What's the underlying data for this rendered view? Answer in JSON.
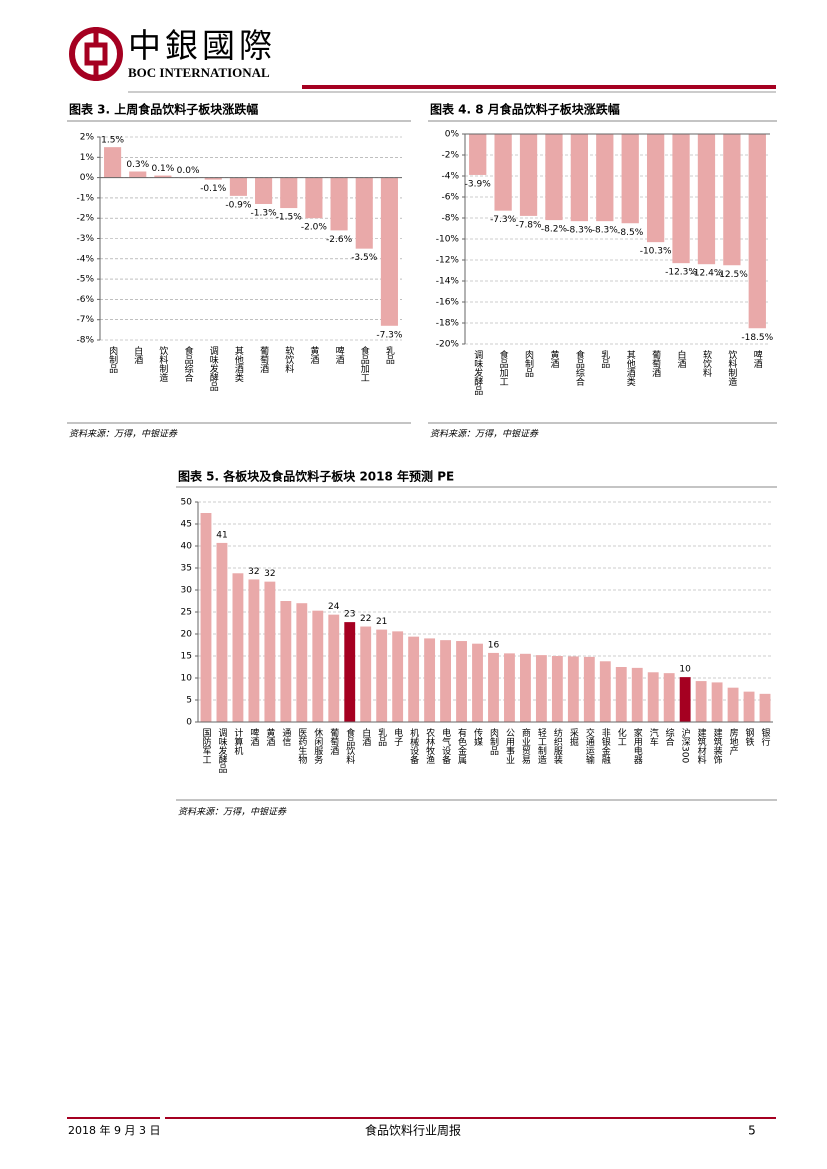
{
  "header": {
    "brand_cn": "中銀國際",
    "brand_en": "BOC INTERNATIONAL"
  },
  "chart_data": [
    {
      "type": "bar",
      "title": "图表 3. 上周食品饮料子板块涨跌幅",
      "source": "资料来源：万得，中银证券",
      "categories": [
        "肉制品",
        "白酒",
        "饮料制造",
        "食品综合",
        "调味发酵品",
        "其他酒类",
        "葡萄酒",
        "软饮料",
        "黄酒",
        "啤酒",
        "食品加工",
        "乳品"
      ],
      "values": [
        1.5,
        0.3,
        0.1,
        0.0,
        -0.1,
        -0.9,
        -1.3,
        -1.5,
        -2.0,
        -2.6,
        -3.5,
        -7.3
      ],
      "value_labels": [
        "1.5%",
        "0.3%",
        "0.1%",
        "0.0%",
        "-0.1%",
        "-0.9%",
        "-1.3%",
        "-1.5%",
        "-2.0%",
        "-2.6%",
        "-3.5%",
        "-7.3%"
      ],
      "color": "#e9a9a9",
      "ylim": [
        -8,
        2
      ],
      "yticks": [
        {
          "value": -8,
          "label": "-8%"
        },
        {
          "value": -7,
          "label": "-7%"
        },
        {
          "value": -6,
          "label": "-6%"
        },
        {
          "value": -5,
          "label": "-5%"
        },
        {
          "value": -4,
          "label": "-4%"
        },
        {
          "value": -3,
          "label": "-3%"
        },
        {
          "value": -2,
          "label": "-2%"
        },
        {
          "value": -1,
          "label": "-1%"
        },
        {
          "value": 0,
          "label": "0%"
        },
        {
          "value": 1,
          "label": "1%"
        },
        {
          "value": 2,
          "label": "2%"
        }
      ],
      "grid": true
    },
    {
      "type": "bar",
      "title": "图表 4. 8 月食品饮料子板块涨跌幅",
      "source": "资料来源：万得，中银证券",
      "categories": [
        "调味发酵品",
        "食品加工",
        "肉制品",
        "黄酒",
        "食品综合",
        "乳品",
        "其他酒类",
        "葡萄酒",
        "白酒",
        "软饮料",
        "饮料制造",
        "啤酒"
      ],
      "values": [
        -3.9,
        -7.3,
        -7.8,
        -8.2,
        -8.3,
        -8.3,
        -8.5,
        -10.3,
        -12.3,
        -12.4,
        -12.5,
        -18.5
      ],
      "value_labels": [
        "-3.9%",
        "-7.3%",
        "-7.8%",
        "-8.2%",
        "-8.3%",
        "-8.3%",
        "-8.5%",
        "-10.3%",
        "-12.3%",
        "-12.4%",
        "-12.5%",
        "-18.5%"
      ],
      "color": "#e9a9a9",
      "ylim": [
        -20,
        0
      ],
      "yticks": [
        {
          "value": -20,
          "label": "-20%"
        },
        {
          "value": -18,
          "label": "-18%"
        },
        {
          "value": -16,
          "label": "-16%"
        },
        {
          "value": -14,
          "label": "-14%"
        },
        {
          "value": -12,
          "label": "-12%"
        },
        {
          "value": -10,
          "label": "-10%"
        },
        {
          "value": -8,
          "label": "-8%"
        },
        {
          "value": -6,
          "label": "-6%"
        },
        {
          "value": -4,
          "label": "-4%"
        },
        {
          "value": -2,
          "label": "-2%"
        },
        {
          "value": 0,
          "label": "0%"
        }
      ],
      "grid": true
    },
    {
      "type": "bar",
      "title": "图表 5. 各板块及食品饮料子板块 2018 年预测 PE",
      "source": "资料来源：万得，中银证券",
      "categories": [
        "国防军工",
        "调味发酵品",
        "计算机",
        "啤酒",
        "黄酒",
        "通信",
        "医药生物",
        "休闲服务",
        "葡萄酒",
        "食品饮料",
        "白酒",
        "乳品",
        "电子",
        "机械设备",
        "农林牧渔",
        "电气设备",
        "有色金属",
        "传媒",
        "肉制品",
        "公用事业",
        "商业贸易",
        "轻工制造",
        "纺织服装",
        "采掘",
        "交通运输",
        "非银金融",
        "化工",
        "家用电器",
        "汽车",
        "综合",
        "沪深300",
        "建筑材料",
        "建筑装饰",
        "房地产",
        "钢铁",
        "银行"
      ],
      "values": [
        47.5,
        40.7,
        33.8,
        32.4,
        31.9,
        27.5,
        27.0,
        25.3,
        24.4,
        22.7,
        21.7,
        21.0,
        20.6,
        19.4,
        19.0,
        18.6,
        18.4,
        17.8,
        15.7,
        15.6,
        15.5,
        15.2,
        15.0,
        14.9,
        14.8,
        13.8,
        12.5,
        12.3,
        11.3,
        11.1,
        10.2,
        9.3,
        9.0,
        7.8,
        6.9,
        6.4
      ],
      "value_labels": [
        null,
        "41",
        null,
        "32",
        "32",
        null,
        null,
        null,
        "24",
        "23",
        "22",
        "21",
        null,
        null,
        null,
        null,
        null,
        null,
        "16",
        null,
        null,
        null,
        null,
        null,
        null,
        null,
        null,
        null,
        null,
        null,
        "10",
        null,
        null,
        null,
        null,
        null
      ],
      "colors": [
        "#e9a9a9",
        "#e9a9a9",
        "#e9a9a9",
        "#e9a9a9",
        "#e9a9a9",
        "#e9a9a9",
        "#e9a9a9",
        "#e9a9a9",
        "#e9a9a9",
        "#a50021",
        "#e9a9a9",
        "#e9a9a9",
        "#e9a9a9",
        "#e9a9a9",
        "#e9a9a9",
        "#e9a9a9",
        "#e9a9a9",
        "#e9a9a9",
        "#e9a9a9",
        "#e9a9a9",
        "#e9a9a9",
        "#e9a9a9",
        "#e9a9a9",
        "#e9a9a9",
        "#e9a9a9",
        "#e9a9a9",
        "#e9a9a9",
        "#e9a9a9",
        "#e9a9a9",
        "#e9a9a9",
        "#a50021",
        "#e9a9a9",
        "#e9a9a9",
        "#e9a9a9",
        "#e9a9a9",
        "#e9a9a9"
      ],
      "ylim": [
        0,
        50
      ],
      "yticks": [
        0,
        5,
        10,
        15,
        20,
        25,
        30,
        35,
        40,
        45,
        50
      ],
      "grid": true
    }
  ],
  "footer": {
    "date": "2018 年 9 月 3 日",
    "title": "食品饮料行业周报",
    "page": "5"
  }
}
